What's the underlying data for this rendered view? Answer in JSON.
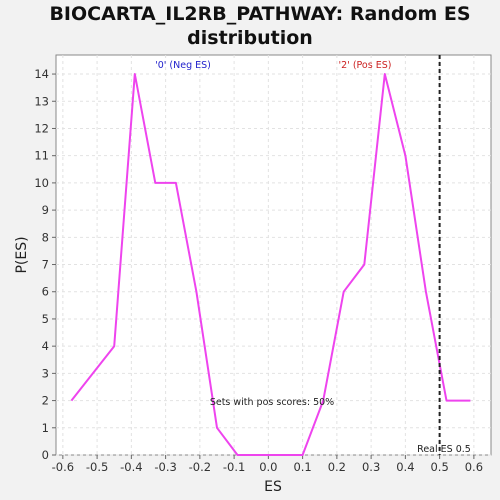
{
  "chart_data": {
    "type": "line",
    "title_line1": "BIOCARTA_IL2RB_PATHWAY: Random ES",
    "title_line2": "distribution",
    "xlabel": "ES",
    "ylabel": "P(ES)",
    "xlim": [
      -0.62,
      0.65
    ],
    "ylim": [
      0,
      14.7
    ],
    "xticks": [
      -0.6,
      -0.5,
      -0.4,
      -0.3,
      -0.2,
      -0.1,
      0.0,
      0.1,
      0.2,
      0.3,
      0.4,
      0.5,
      0.6
    ],
    "xtick_labels": [
      "-0.6",
      "-0.5",
      "-0.4",
      "-0.3",
      "-0.2",
      "-0.1",
      "0.0",
      "0.1",
      "0.2",
      "0.3",
      "0.4",
      "0.5",
      "0.6"
    ],
    "yticks": [
      0,
      1,
      2,
      3,
      4,
      5,
      6,
      7,
      8,
      9,
      10,
      11,
      12,
      13,
      14
    ],
    "ytick_labels": [
      "0",
      "1",
      "2",
      "3",
      "4",
      "5",
      "6",
      "7",
      "8",
      "9",
      "10",
      "11",
      "12",
      "13",
      "14"
    ],
    "grid": true,
    "series": [
      {
        "color": "#ee44ee",
        "x": [
          -0.575,
          -0.45,
          -0.39,
          -0.33,
          -0.27,
          -0.21,
          -0.15,
          -0.09,
          -0.03,
          0.03,
          0.1,
          0.16,
          0.22,
          0.28,
          0.34,
          0.4,
          0.46,
          0.52,
          0.59
        ],
        "y": [
          2,
          4,
          14,
          10,
          10,
          6,
          1,
          0,
          0,
          0,
          0,
          2,
          6,
          7,
          14,
          11,
          6,
          2,
          2
        ]
      }
    ],
    "real_es": 0.5,
    "real_es_label": "Real ES 0.5",
    "neg_label": "'0' (Neg ES)",
    "neg_label_color": "#2222cc",
    "pos_label": "'2' (Pos ES)",
    "pos_label_color": "#cc2222",
    "pos_scores_text": "Sets with pos scores: 50%"
  }
}
